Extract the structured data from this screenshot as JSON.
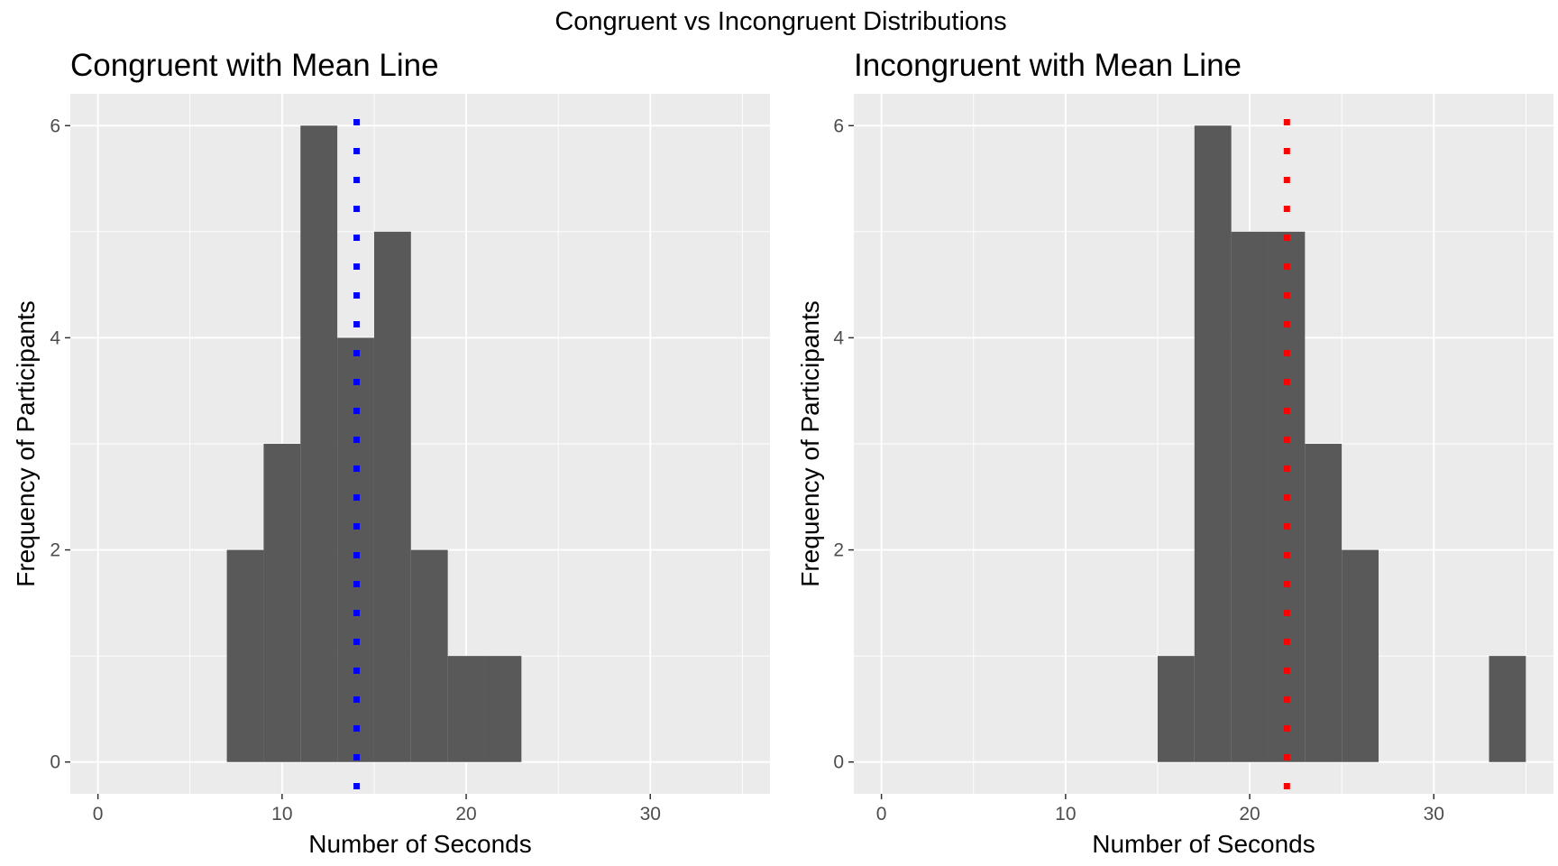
{
  "figure": {
    "title": "Congruent vs Incongruent Distributions"
  },
  "chart_data": [
    {
      "type": "bar",
      "title": "Congruent with Mean Line",
      "xlabel": "Number of Seconds",
      "ylabel": "Frequency of Participants",
      "bins": [
        {
          "x0": 7,
          "x1": 9,
          "count": 2
        },
        {
          "x0": 9,
          "x1": 11,
          "count": 3
        },
        {
          "x0": 11,
          "x1": 13,
          "count": 6
        },
        {
          "x0": 13,
          "x1": 15,
          "count": 4
        },
        {
          "x0": 15,
          "x1": 17,
          "count": 5
        },
        {
          "x0": 17,
          "x1": 19,
          "count": 2
        },
        {
          "x0": 19,
          "x1": 21,
          "count": 1
        },
        {
          "x0": 21,
          "x1": 23,
          "count": 1
        }
      ],
      "mean_line": {
        "x": 14.05,
        "color": "#0000ff",
        "style": "dotted"
      },
      "xlim": [
        -1.5,
        36.5
      ],
      "ylim": [
        -0.3,
        6.3
      ],
      "xticks": [
        0,
        10,
        20,
        30
      ],
      "yticks": [
        0,
        2,
        4,
        6
      ],
      "grid": true,
      "bar_color": "#595959"
    },
    {
      "type": "bar",
      "title": "Incongruent with Mean Line",
      "xlabel": "Number of Seconds",
      "ylabel": "Frequency of Participants",
      "bins": [
        {
          "x0": 15,
          "x1": 17,
          "count": 1
        },
        {
          "x0": 17,
          "x1": 19,
          "count": 6
        },
        {
          "x0": 19,
          "x1": 21,
          "count": 5
        },
        {
          "x0": 21,
          "x1": 23,
          "count": 5
        },
        {
          "x0": 23,
          "x1": 25,
          "count": 3
        },
        {
          "x0": 25,
          "x1": 27,
          "count": 2
        },
        {
          "x0": 27,
          "x1": 29,
          "count": 0
        },
        {
          "x0": 29,
          "x1": 31,
          "count": 0
        },
        {
          "x0": 31,
          "x1": 33,
          "count": 0
        },
        {
          "x0": 33,
          "x1": 35,
          "count": 1
        }
      ],
      "mean_line": {
        "x": 22.02,
        "color": "#ff0000",
        "style": "dotted"
      },
      "xlim": [
        -1.5,
        36.5
      ],
      "ylim": [
        -0.3,
        6.3
      ],
      "xticks": [
        0,
        10,
        20,
        30
      ],
      "yticks": [
        0,
        2,
        4,
        6
      ],
      "grid": true,
      "bar_color": "#595959"
    }
  ]
}
